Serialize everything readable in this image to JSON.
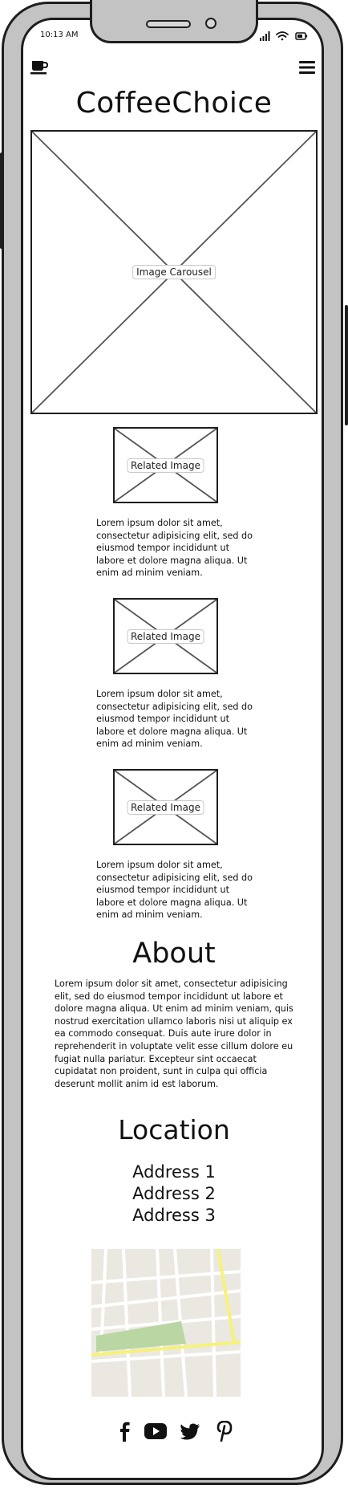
{
  "status_bar": {
    "time": "10:13 AM"
  },
  "header": {
    "app_icon": "coffee-cup-icon",
    "menu_icon": "hamburger-menu-icon",
    "title": "CoffeeChoice"
  },
  "carousel": {
    "label": "Image Carousel"
  },
  "related": [
    {
      "image_label": "Related Image",
      "text": "Lorem ipsum dolor sit amet, consectetur adipisicing elit, sed do eiusmod tempor incididunt ut labore et dolore magna aliqua. Ut enim ad minim veniam."
    },
    {
      "image_label": "Related Image",
      "text": "Lorem ipsum dolor sit amet, consectetur adipisicing elit, sed do eiusmod tempor incididunt ut labore et dolore magna aliqua. Ut enim ad minim veniam."
    },
    {
      "image_label": "Related Image",
      "text": "Lorem ipsum dolor sit amet, consectetur adipisicing elit, sed do eiusmod tempor incididunt ut labore et dolore magna aliqua. Ut enim ad minim veniam."
    }
  ],
  "about": {
    "heading": "About",
    "text": "Lorem ipsum dolor sit amet, consectetur adipisicing elit, sed do eiusmod tempor incididunt ut labore et dolore magna aliqua. Ut enim ad minim veniam, quis nostrud exercitation ullamco laboris nisi ut aliquip ex ea commodo consequat. Duis aute irure dolor in reprehenderit in voluptate velit esse cillum dolore eu fugiat nulla pariatur. Excepteur sint occaecat cupidatat non proident, sunt in culpa qui officia deserunt mollit anim id est laborum."
  },
  "location": {
    "heading": "Location",
    "addresses": [
      "Address 1",
      "Address 2",
      "Address 3"
    ]
  },
  "map": {
    "icon": "map-icon"
  },
  "social": [
    "facebook-icon",
    "youtube-icon",
    "twitter-icon",
    "pinterest-icon"
  ],
  "colors": {
    "frame": "#c3c3c3",
    "stroke": "#1e1e1e",
    "map_road_yellow": "#f6f27a",
    "map_park": "#b9d6a3"
  }
}
